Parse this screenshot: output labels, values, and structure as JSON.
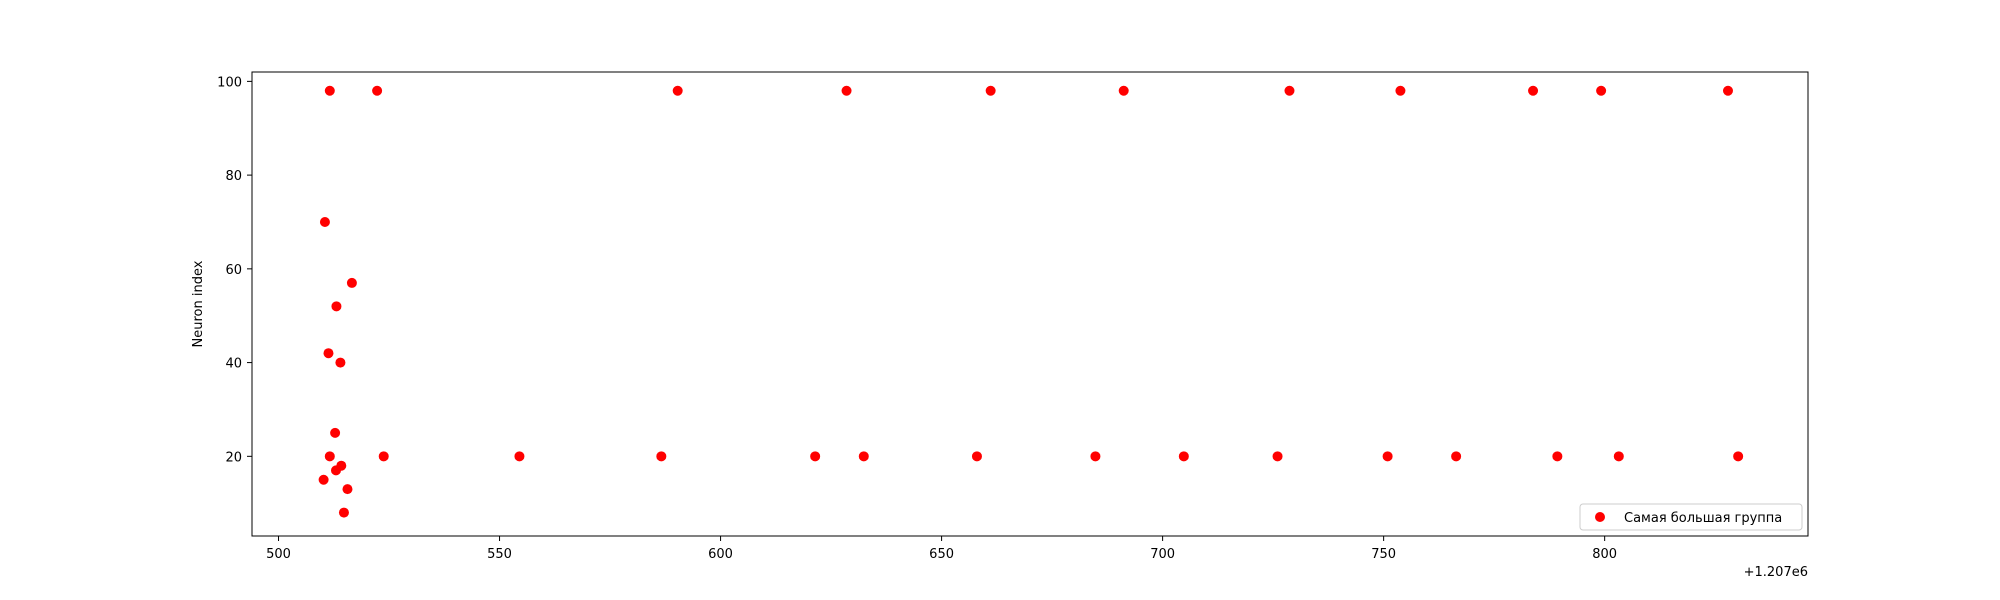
{
  "chart_data": {
    "type": "scatter",
    "title": "",
    "xlabel": "",
    "ylabel": "Neuron index",
    "x_offset_text": "+1.207e6",
    "xlim": [
      494,
      846
    ],
    "ylim": [
      3,
      102
    ],
    "xticks": [
      500,
      550,
      600,
      650,
      700,
      750,
      800
    ],
    "yticks": [
      20,
      40,
      60,
      80,
      100
    ],
    "grid": false,
    "legend_position": "lower right",
    "series": [
      {
        "name": "Самая большая группа",
        "color": "#ff0000",
        "points": [
          {
            "x": 511.6,
            "y": 98
          },
          {
            "x": 522.3,
            "y": 98
          },
          {
            "x": 590.3,
            "y": 98
          },
          {
            "x": 628.5,
            "y": 98
          },
          {
            "x": 661.1,
            "y": 98
          },
          {
            "x": 691.2,
            "y": 98
          },
          {
            "x": 728.7,
            "y": 98
          },
          {
            "x": 753.8,
            "y": 98
          },
          {
            "x": 783.8,
            "y": 98
          },
          {
            "x": 799.2,
            "y": 98
          },
          {
            "x": 827.9,
            "y": 98
          },
          {
            "x": 510.5,
            "y": 70
          },
          {
            "x": 516.6,
            "y": 57
          },
          {
            "x": 513.1,
            "y": 52
          },
          {
            "x": 511.3,
            "y": 42
          },
          {
            "x": 514.0,
            "y": 40
          },
          {
            "x": 512.8,
            "y": 25
          },
          {
            "x": 511.6,
            "y": 20
          },
          {
            "x": 523.8,
            "y": 20
          },
          {
            "x": 554.5,
            "y": 20
          },
          {
            "x": 586.6,
            "y": 20
          },
          {
            "x": 621.4,
            "y": 20
          },
          {
            "x": 632.4,
            "y": 20
          },
          {
            "x": 658.0,
            "y": 20
          },
          {
            "x": 684.8,
            "y": 20
          },
          {
            "x": 704.8,
            "y": 20
          },
          {
            "x": 726.0,
            "y": 20
          },
          {
            "x": 750.9,
            "y": 20
          },
          {
            "x": 766.4,
            "y": 20
          },
          {
            "x": 789.3,
            "y": 20
          },
          {
            "x": 803.2,
            "y": 20
          },
          {
            "x": 830.2,
            "y": 20
          },
          {
            "x": 514.2,
            "y": 18
          },
          {
            "x": 513.0,
            "y": 17
          },
          {
            "x": 510.2,
            "y": 15
          },
          {
            "x": 515.6,
            "y": 13
          },
          {
            "x": 514.8,
            "y": 8
          }
        ]
      }
    ]
  }
}
